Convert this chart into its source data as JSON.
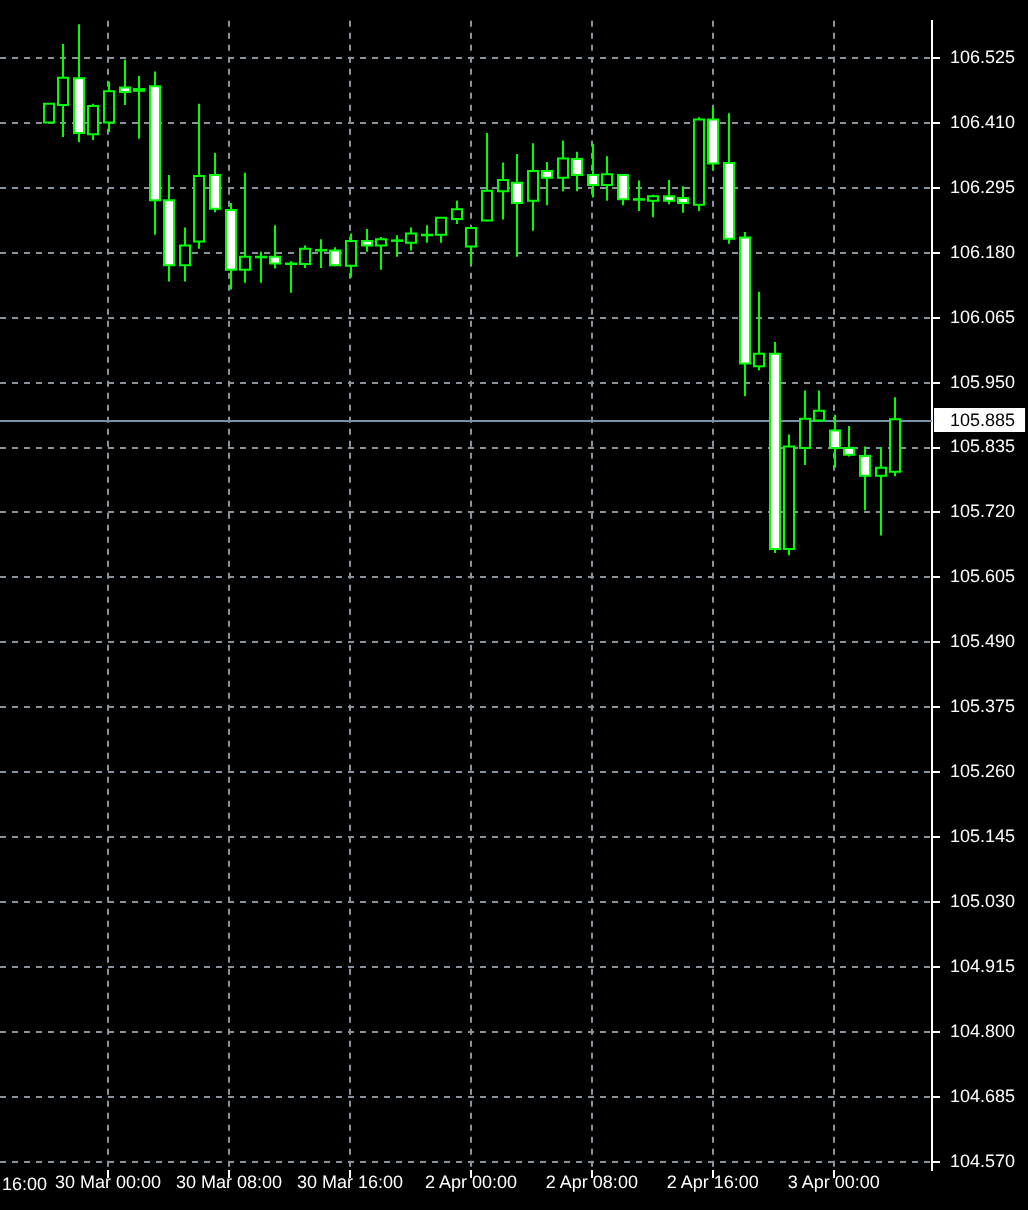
{
  "chart_data": {
    "type": "candlestick",
    "color": "#00ff00",
    "colors": [
      "#000000",
      "#000000",
      "#ffffff",
      "#000000",
      "#000000",
      "#ffffff",
      "#000000",
      "#ffffff",
      "#ffffff",
      "#000000",
      "#000000",
      "#ffffff",
      "#ffffff",
      "#000000",
      "#000000",
      "#ffffff",
      "#ffffff",
      "#000000",
      "#000000",
      "#ffffff",
      "#000000",
      "#ffffff",
      "#000000",
      "#000000",
      "#000000",
      "#000000",
      "#000000",
      "#000000",
      "#000000",
      "#000000",
      "#000000",
      "#ffffff",
      "#000000",
      "#ffffff",
      "#000000",
      "#ffffff",
      "#ffffff",
      "#000000",
      "#ffffff",
      "#ffffff",
      "#000000",
      "#ffffff",
      "#ffffff",
      "#000000",
      "#ffffff",
      "#ffffff",
      "#ffffff",
      "#000000",
      "#ffffff",
      "#000000",
      "#000000",
      "#000000",
      "#ffffff",
      "#ffffff",
      "#ffffff",
      "#000000",
      "#000000"
    ],
    "categories": [
      null,
      null,
      null,
      null,
      "30 Mar 00:00",
      null,
      null,
      null,
      null,
      null,
      null,
      null,
      "30 Mar 08:00",
      null,
      null,
      null,
      null,
      null,
      null,
      null,
      "30 Mar 16:00",
      null,
      null,
      null,
      null,
      null,
      null,
      null,
      "2 Apr 00:00",
      null,
      null,
      null,
      null,
      null,
      null,
      null,
      "2 Apr 08:00",
      null,
      null,
      null,
      null,
      null,
      null,
      null,
      "2 Apr 16:00",
      null,
      null,
      null,
      null,
      null,
      null,
      null,
      "3 Apr 00:00",
      null,
      null,
      null,
      null
    ],
    "ohlc": [
      [
        106.411,
        106.444,
        106.411,
        106.444
      ],
      [
        106.442,
        106.55,
        106.385,
        106.49
      ],
      [
        106.489,
        106.585,
        106.376,
        106.392
      ],
      [
        106.39,
        106.444,
        106.38,
        106.44
      ],
      [
        106.411,
        106.483,
        106.394,
        106.466
      ],
      [
        106.473,
        106.522,
        106.442,
        106.465
      ],
      [
        106.467,
        106.493,
        106.382,
        106.47
      ],
      [
        106.475,
        106.501,
        106.212,
        106.273
      ],
      [
        106.273,
        106.318,
        106.129,
        106.158
      ],
      [
        106.158,
        106.225,
        106.129,
        106.193
      ],
      [
        106.2,
        106.444,
        106.187,
        106.316
      ],
      [
        106.318,
        106.357,
        106.252,
        106.258
      ],
      [
        106.256,
        106.268,
        106.115,
        106.15
      ],
      [
        106.15,
        106.322,
        106.127,
        106.173
      ],
      [
        106.172,
        106.182,
        106.127,
        106.173
      ],
      [
        106.173,
        106.229,
        106.152,
        106.161
      ],
      [
        106.161,
        106.165,
        106.109,
        106.16
      ],
      [
        106.16,
        106.193,
        106.153,
        106.187
      ],
      [
        106.184,
        106.204,
        106.153,
        106.185
      ],
      [
        106.184,
        106.19,
        106.156,
        106.158
      ],
      [
        106.157,
        106.214,
        106.136,
        106.201
      ],
      [
        106.201,
        106.222,
        106.182,
        106.193
      ],
      [
        106.193,
        106.208,
        106.15,
        106.204
      ],
      [
        106.201,
        106.211,
        106.173,
        106.202
      ],
      [
        106.198,
        106.225,
        106.184,
        106.214
      ],
      [
        106.211,
        106.229,
        106.198,
        106.212
      ],
      [
        106.212,
        106.243,
        106.198,
        106.242
      ],
      [
        106.24,
        106.272,
        106.231,
        106.257
      ],
      [
        106.191,
        106.225,
        106.159,
        106.224
      ],
      [
        106.237,
        106.392,
        106.236,
        106.29
      ],
      [
        106.289,
        106.34,
        106.239,
        106.309
      ],
      [
        106.304,
        106.355,
        106.173,
        106.268
      ],
      [
        106.272,
        106.374,
        106.219,
        106.325
      ],
      [
        106.325,
        106.341,
        106.264,
        106.313
      ],
      [
        106.313,
        106.379,
        106.289,
        106.347
      ],
      [
        106.346,
        106.359,
        106.289,
        106.318
      ],
      [
        106.318,
        106.373,
        106.278,
        106.3
      ],
      [
        106.3,
        106.351,
        106.272,
        106.319
      ],
      [
        106.318,
        106.319,
        106.264,
        106.275
      ],
      [
        106.275,
        106.308,
        106.254,
        106.274
      ],
      [
        106.272,
        106.283,
        106.243,
        106.28
      ],
      [
        106.28,
        106.309,
        106.266,
        106.272
      ],
      [
        106.277,
        106.298,
        106.251,
        106.268
      ],
      [
        106.265,
        106.42,
        106.254,
        106.416
      ],
      [
        106.416,
        106.438,
        106.326,
        106.338
      ],
      [
        106.339,
        106.427,
        106.196,
        106.205
      ],
      [
        106.207,
        106.217,
        105.926,
        105.984
      ],
      [
        105.979,
        106.111,
        105.972,
        106.001
      ],
      [
        106.001,
        106.022,
        105.648,
        105.655
      ],
      [
        105.655,
        105.858,
        105.644,
        105.837
      ],
      [
        105.834,
        105.936,
        105.804,
        105.886
      ],
      [
        105.883,
        105.936,
        105.882,
        105.9
      ],
      [
        105.865,
        105.893,
        105.799,
        105.834
      ],
      [
        105.834,
        105.873,
        105.819,
        105.822
      ],
      [
        105.82,
        105.837,
        105.724,
        105.785
      ],
      [
        105.785,
        105.836,
        105.679,
        105.799
      ],
      [
        105.792,
        105.924,
        105.784,
        105.885
      ]
    ],
    "ylim": [
      104.555,
      106.591
    ],
    "yticks": [
      106.525,
      {
        "value": 106.41,
        "label": "106.410"
      },
      106.295,
      {
        "value": 106.18,
        "label": "106.180"
      },
      106.065,
      {
        "value": 105.95,
        "label": "105.950"
      },
      105.835,
      {
        "value": 105.72,
        "label": "105.720"
      },
      105.605,
      {
        "value": 105.49,
        "label": "105.490"
      },
      105.375,
      {
        "value": 105.26,
        "label": "105.260"
      },
      105.145,
      {
        "value": 105.03,
        "label": "105.030"
      },
      104.915,
      {
        "value": 104.8,
        "label": "104.800"
      },
      104.685,
      {
        "value": 104.57,
        "label": "104.570"
      }
    ],
    "grid": true,
    "ref_lines": [
      {
        "axis": "y",
        "value": 105.885,
        "label": "105.885",
        "color": "#7890a8"
      }
    ],
    "annotations": [
      "16:00"
    ]
  }
}
